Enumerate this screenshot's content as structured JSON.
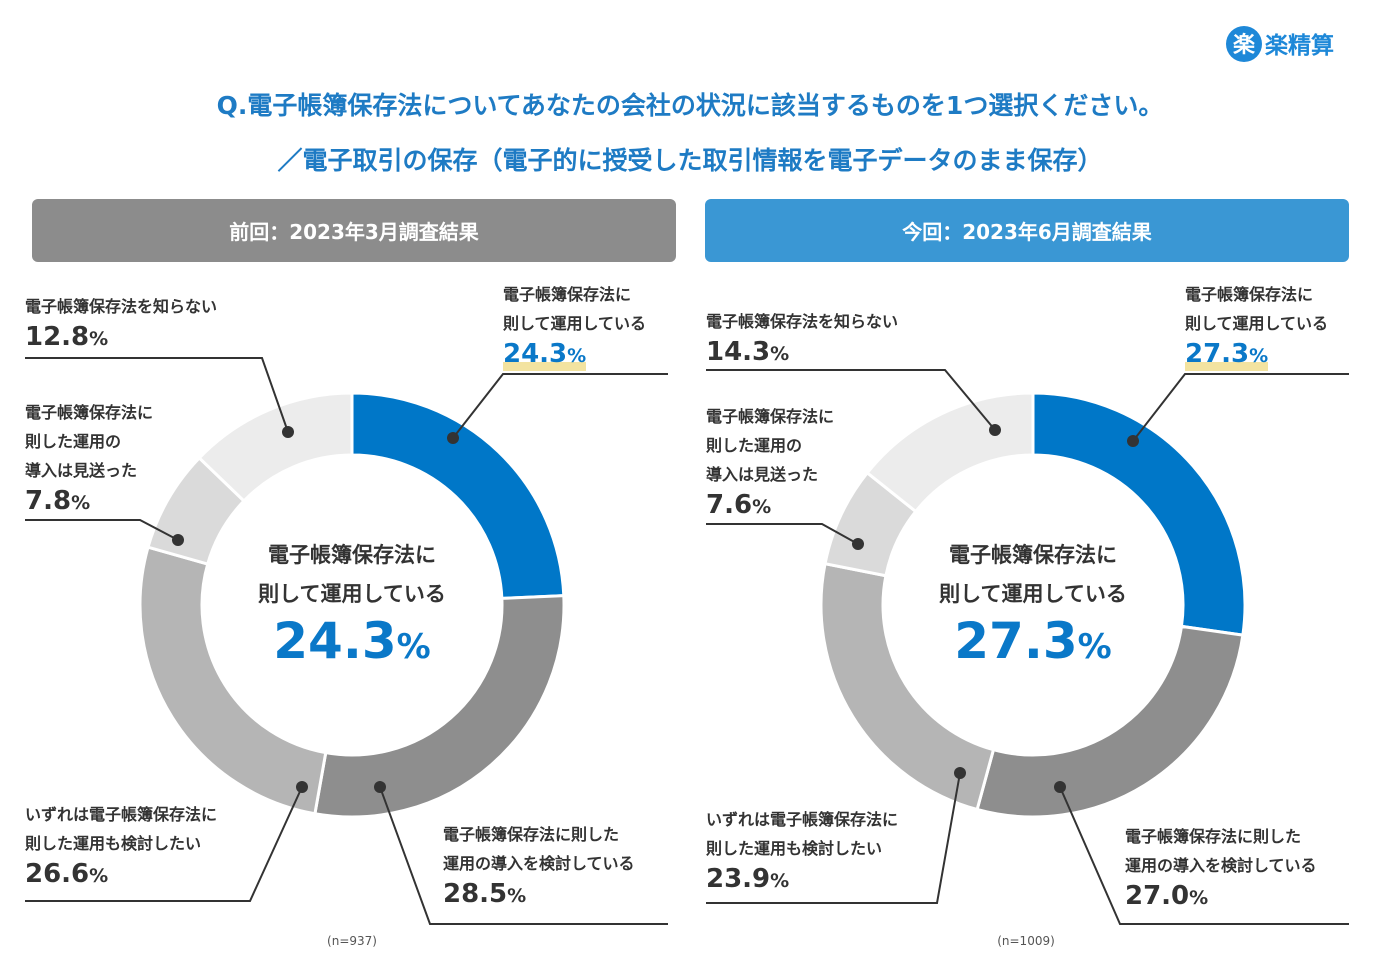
{
  "logo": {
    "mark": "楽",
    "text": "楽精算"
  },
  "title": [
    "Q.電子帳簿保存法についてあなたの会社の状況に該当するものを1つ選択ください。",
    "／電子取引の保存（電子的に授受した取引情報を電子データのまま保存）"
  ],
  "chart_data": [
    {
      "type": "pie",
      "title": "前回：2023年3月調査結果",
      "header_color": "#8c8c8c",
      "categories": [
        "電子帳簿保存法に\n則して運用している",
        "電子帳簿保存法に則した\n運用の導入を検討している",
        "いずれは電子帳簿保存法に\n則した運用も検討したい",
        "電子帳簿保存法に\n則した運用の\n導入は見送った",
        "電子帳簿保存法を知らない"
      ],
      "values": [
        24.3,
        28.5,
        26.6,
        7.8,
        12.8
      ],
      "value_labels": [
        "24.3%",
        "28.5%",
        "26.6%",
        "7.8%",
        "12.8%"
      ],
      "colors": [
        "#0077c8",
        "#8e8e8e",
        "#b5b5b5",
        "#dadada",
        "#ececec"
      ],
      "note": "(n=937)"
    },
    {
      "type": "pie",
      "title": "今回：2023年6月調査結果",
      "header_color": "#3a97d4",
      "categories": [
        "電子帳簿保存法に\n則して運用している",
        "電子帳簿保存法に則した\n運用の導入を検討している",
        "いずれは電子帳簿保存法に\n則した運用も検討したい",
        "電子帳簿保存法に\n則した運用の\n導入は見送った",
        "電子帳簿保存法を知らない"
      ],
      "values": [
        27.3,
        27.0,
        23.9,
        7.6,
        14.3
      ],
      "value_labels": [
        "27.3%",
        "27.0%",
        "23.9%",
        "7.6%",
        "14.3%"
      ],
      "colors": [
        "#0077c8",
        "#8e8e8e",
        "#b5b5b5",
        "#dadada",
        "#ececec"
      ],
      "note": "(n=1009)"
    }
  ]
}
